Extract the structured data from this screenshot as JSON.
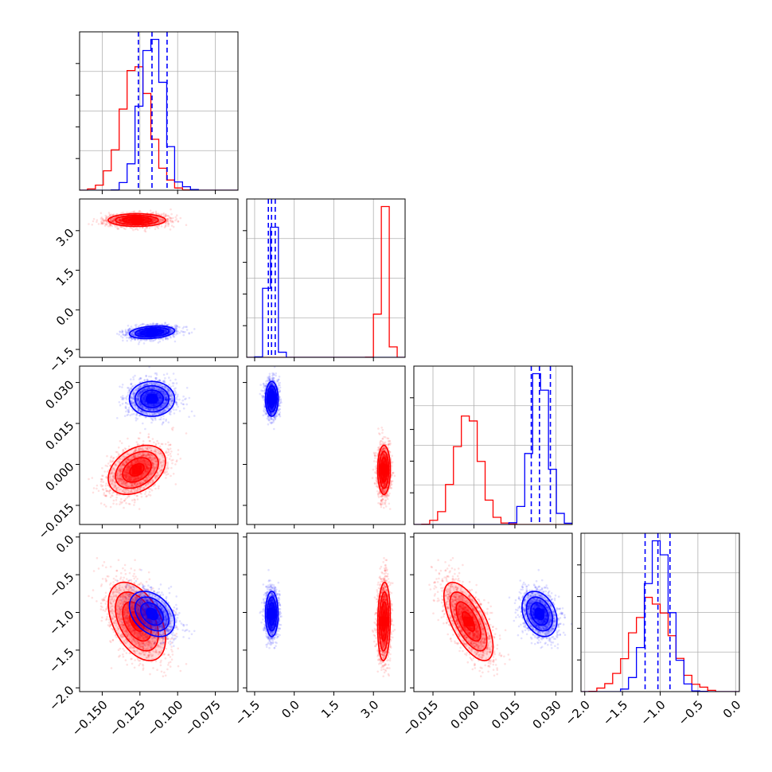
{
  "chart_data": {
    "type": "corner",
    "grid": true,
    "parameters": [
      {
        "range": [
          -0.165,
          -0.06
        ],
        "ticks": [
          "-0.150",
          "-0.125",
          "-0.100",
          "-0.075"
        ],
        "tick_values": [
          -0.15,
          -0.125,
          -0.1,
          -0.075
        ]
      },
      {
        "range": [
          -1.8,
          4.2
        ],
        "ticks": [
          "-1.5",
          "0.0",
          "1.5",
          "3.0"
        ],
        "tick_values": [
          -1.5,
          0.0,
          1.5,
          3.0
        ]
      },
      {
        "range": [
          -0.022,
          0.036
        ],
        "ticks": [
          "-0.015",
          "0.000",
          "0.015",
          "0.030"
        ],
        "tick_values": [
          -0.015,
          0.0,
          0.015,
          0.03
        ]
      },
      {
        "range": [
          -2.05,
          0.05
        ],
        "ticks": [
          "-2.0",
          "-1.5",
          "-1.0",
          "-0.5",
          "0.0"
        ],
        "tick_values": [
          -2.0,
          -1.5,
          -1.0,
          -0.5,
          0.0
        ]
      }
    ],
    "series": [
      {
        "color": "#ff0000",
        "means": [
          -0.127,
          3.4,
          -0.002,
          -1.12
        ],
        "sds": [
          0.0095,
          0.12,
          0.0045,
          0.26
        ],
        "correlations": [
          [
            0,
            2,
            0.35
          ],
          [
            0,
            3,
            -0.45
          ],
          [
            2,
            3,
            -0.65
          ],
          [
            1,
            3,
            0.1
          ]
        ]
      },
      {
        "color": "#0000ff",
        "means": [
          -0.117,
          -0.85,
          0.024,
          -1.02
        ],
        "sds": [
          0.0075,
          0.12,
          0.0032,
          0.15
        ],
        "correlations": [
          [
            0,
            1,
            0.25
          ],
          [
            0,
            3,
            -0.35
          ],
          [
            2,
            3,
            -0.3
          ]
        ]
      }
    ],
    "quantile_lines": {
      "color": "#0000ff",
      "style": "dashed",
      "values": [
        [
          -0.126,
          -0.117,
          -0.107
        ],
        [
          -0.98,
          -0.86,
          -0.72
        ],
        [
          0.021,
          0.024,
          0.028
        ],
        [
          -1.2,
          -1.03,
          -0.87
        ]
      ]
    },
    "contour_levels": [
      0.5,
      1.0,
      1.5,
      2.0
    ]
  }
}
